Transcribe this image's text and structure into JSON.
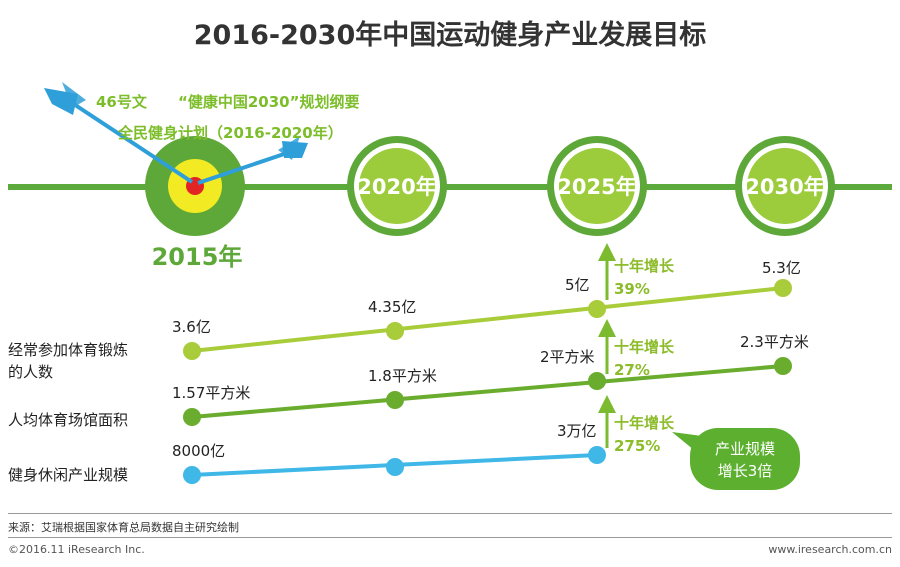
{
  "colors": {
    "timeline": "#5daa3c",
    "milestone_dark": "#5ea83a",
    "milestone_light": "#9ccc3c",
    "row1": "#a9cc3a",
    "row2": "#6aad2e",
    "row3": "#3fb8e8",
    "growth_label": "#8cbc2a",
    "bubble": "#5db02f",
    "target_red": "#e32424",
    "target_yellow": "#f2ea22",
    "arrow_blue": "#2e9fd8",
    "title": "#333333"
  },
  "header": {
    "title": "2016-2030年中国运动健身产业发展目标"
  },
  "policy": {
    "line1a": "46号文",
    "line1b": "“健康中国2030”规划纲要",
    "line2": "全民健身计划（2016-2020年）"
  },
  "milestones": {
    "m2015": "2015年",
    "m2020": "2020年",
    "m2025": "2025年",
    "m2030": "2030年"
  },
  "growth": {
    "g1_title": "十年增长",
    "g1_value": "39%",
    "g2_title": "十年增长",
    "g2_value": "27%",
    "g3_title": "十年增长",
    "g3_value": "275%"
  },
  "bubble": {
    "line1": "产业规模",
    "line2": "增长3倍"
  },
  "chart_data": {
    "type": "line",
    "title": "2016-2030年中国运动健身产业发展目标",
    "categories": [
      "2015年",
      "2020年",
      "2025年",
      "2030年"
    ],
    "series": [
      {
        "name": "经常参加体育锻炼的人数",
        "name_line1": "经常参加体育锻炼",
        "name_line2": "的人数",
        "values": [
          3.6,
          4.35,
          5,
          5.3
        ],
        "labels": [
          "3.6亿",
          "4.35亿",
          "5亿",
          "5.3亿"
        ]
      },
      {
        "name": "人均体育场馆面积",
        "values": [
          1.57,
          1.8,
          2,
          2.3
        ],
        "labels": [
          "1.57平方米",
          "1.8平方米",
          "2平方米",
          "2.3平方米"
        ]
      },
      {
        "name": "健身休闲产业规模",
        "values": [
          8000,
          null,
          30000,
          null
        ],
        "labels": [
          "8000亿",
          "3万亿"
        ]
      }
    ]
  },
  "footer": {
    "source": "来源：艾瑞根据国家体育总局数据自主研究绘制",
    "copyright": "©2016.11 iResearch Inc.",
    "url": "www.iresearch.com.cn"
  }
}
